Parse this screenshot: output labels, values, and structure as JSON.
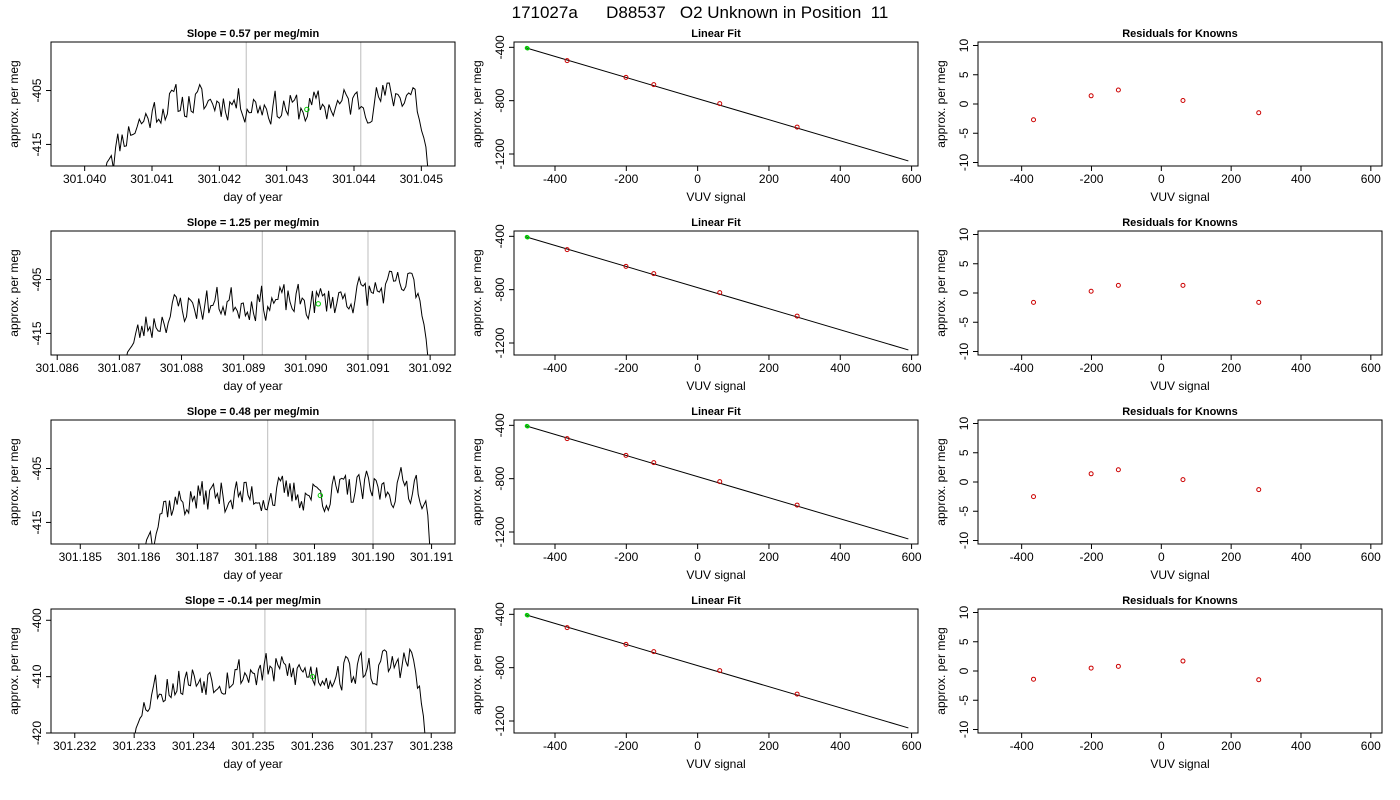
{
  "page": {
    "title": "171027a      D88537   O2 Unknown in Position  11"
  },
  "colors": {
    "line": "#000000",
    "point": "#cc0000",
    "highlight": "#00cc00",
    "vline": "#c8c8c8"
  },
  "chart_data": [
    {
      "type": "line",
      "title": "Slope =  0.57  per meg/min",
      "xlabel": "day of year",
      "ylabel": "approx. per meg",
      "xlim": [
        301.0395,
        301.0455
      ],
      "ylim": [
        -419,
        -396
      ],
      "xticks": [
        "301.040",
        "301.041",
        "301.042",
        "301.043",
        "301.044",
        "301.045"
      ],
      "yticks": [
        "-405",
        "-415"
      ],
      "vlines": [
        301.0424,
        301.0441
      ],
      "x_range": [
        301.0403,
        301.0451
      ],
      "rise_to": -409,
      "fall_to": -408,
      "seed": 11,
      "levels": [
        [
          301.0403,
          -419
        ],
        [
          301.0406,
          -413
        ],
        [
          301.0412,
          -407.5
        ],
        [
          301.0422,
          -407
        ],
        [
          301.0432,
          -408.5
        ],
        [
          301.0442,
          -407
        ],
        [
          301.0449,
          -405
        ],
        [
          301.0451,
          -419
        ]
      ],
      "green_point": [
        301.0433,
        -408.5
      ]
    },
    {
      "type": "line",
      "title": "Slope =  1.25  per meg/min",
      "xlabel": "day of year",
      "ylabel": "approx. per meg",
      "xlim": [
        301.0859,
        301.0924
      ],
      "ylim": [
        -419,
        -396
      ],
      "xticks": [
        "301.086",
        "301.087",
        "301.088",
        "301.089",
        "301.090",
        "301.091",
        "301.092"
      ],
      "yticks": [
        "-405",
        "-415"
      ],
      "vlines": [
        301.0893,
        301.091
      ],
      "x_range": [
        301.0871,
        301.092
      ],
      "rise_to": -411,
      "fall_to": -410,
      "seed": 23,
      "levels": [
        [
          301.0871,
          -419
        ],
        [
          301.0874,
          -414
        ],
        [
          301.088,
          -410
        ],
        [
          301.089,
          -409
        ],
        [
          301.09,
          -409.5
        ],
        [
          301.091,
          -407.5
        ],
        [
          301.0918,
          -406
        ],
        [
          301.092,
          -419
        ]
      ],
      "green_point": [
        301.0902,
        -409.5
      ]
    },
    {
      "type": "line",
      "title": "Slope =  0.48  per meg/min",
      "xlabel": "day of year",
      "ylabel": "approx. per meg",
      "xlim": [
        301.1845,
        301.1914
      ],
      "ylim": [
        -419,
        -396
      ],
      "xticks": [
        "301.185",
        "301.186",
        "301.187",
        "301.188",
        "301.189",
        "301.190",
        "301.191"
      ],
      "yticks": [
        "-405",
        "-415"
      ],
      "vlines": [
        301.1882,
        301.19
      ],
      "x_range": [
        301.1861,
        301.191
      ],
      "rise_to": -418,
      "fall_to": -419,
      "seed": 37,
      "levels": [
        [
          301.1861,
          -419
        ],
        [
          301.1864,
          -412
        ],
        [
          301.1872,
          -410
        ],
        [
          301.1882,
          -410
        ],
        [
          301.1892,
          -409.5
        ],
        [
          301.1902,
          -409
        ],
        [
          301.1908,
          -407.5
        ],
        [
          301.191,
          -419
        ]
      ],
      "green_point": [
        301.1891,
        -410
      ]
    },
    {
      "type": "line",
      "title": "Slope =  -0.14  per meg/min",
      "xlabel": "day of year",
      "ylabel": "approx. per meg",
      "xlim": [
        301.2316,
        301.2384
      ],
      "ylim": [
        -420,
        -398
      ],
      "xticks": [
        "301.232",
        "301.233",
        "301.234",
        "301.235",
        "301.236",
        "301.237",
        "301.238"
      ],
      "yticks": [
        "-420",
        "-410",
        "-400"
      ],
      "vlines": [
        301.2352,
        301.2369
      ],
      "x_range": [
        301.233,
        301.2379
      ],
      "rise_to": -420,
      "fall_to": -420,
      "seed": 53,
      "levels": [
        [
          301.233,
          -420
        ],
        [
          301.2333,
          -412
        ],
        [
          301.2342,
          -410
        ],
        [
          301.2352,
          -409
        ],
        [
          301.2362,
          -409.5
        ],
        [
          301.2372,
          -408.5
        ],
        [
          301.2377,
          -407
        ],
        [
          301.2379,
          -420
        ]
      ],
      "green_point": [
        301.236,
        -410
      ]
    },
    {
      "type": "scatter",
      "title": "Linear Fit",
      "xlabel": "VUV signal",
      "ylabel": "approx. per meg",
      "xlim": [
        -515,
        618
      ],
      "ylim": [
        -1290,
        -360
      ],
      "xticks": [
        "-400",
        "-200",
        "0",
        "200",
        "400",
        "600"
      ],
      "yticks": [
        "-400",
        "-800",
        "-1200"
      ],
      "points": [
        [
          -366,
          -500
        ],
        [
          -201,
          -625
        ],
        [
          -123,
          -680
        ],
        [
          62,
          -822
        ],
        [
          279,
          -998
        ]
      ],
      "green_points": [
        [
          -479,
          -405
        ],
        [
          -477,
          -408
        ]
      ],
      "fit_line": [
        [
          -480,
          -405
        ],
        [
          591,
          -1252
        ]
      ]
    },
    {
      "type": "scatter",
      "title": "Linear Fit",
      "xlabel": "VUV signal",
      "ylabel": "approx. per meg",
      "xlim": [
        -515,
        618
      ],
      "ylim": [
        -1290,
        -360
      ],
      "xticks": [
        "-400",
        "-200",
        "0",
        "200",
        "400",
        "600"
      ],
      "yticks": [
        "-400",
        "-800",
        "-1200"
      ],
      "points": [
        [
          -366,
          -500
        ],
        [
          -201,
          -625
        ],
        [
          -123,
          -680
        ],
        [
          62,
          -822
        ],
        [
          279,
          -998
        ]
      ],
      "green_points": [
        [
          -479,
          -405
        ],
        [
          -477,
          -408
        ]
      ],
      "fit_line": [
        [
          -480,
          -405
        ],
        [
          591,
          -1252
        ]
      ]
    },
    {
      "type": "scatter",
      "title": "Linear Fit",
      "xlabel": "VUV signal",
      "ylabel": "approx. per meg",
      "xlim": [
        -515,
        618
      ],
      "ylim": [
        -1290,
        -360
      ],
      "xticks": [
        "-400",
        "-200",
        "0",
        "200",
        "400",
        "600"
      ],
      "yticks": [
        "-400",
        "-800",
        "-1200"
      ],
      "points": [
        [
          -366,
          -500
        ],
        [
          -201,
          -625
        ],
        [
          -123,
          -680
        ],
        [
          62,
          -822
        ],
        [
          279,
          -998
        ]
      ],
      "green_points": [
        [
          -479,
          -405
        ],
        [
          -477,
          -408
        ]
      ],
      "fit_line": [
        [
          -480,
          -405
        ],
        [
          591,
          -1252
        ]
      ]
    },
    {
      "type": "scatter",
      "title": "Linear Fit",
      "xlabel": "VUV signal",
      "ylabel": "approx. per meg",
      "xlim": [
        -515,
        618
      ],
      "ylim": [
        -1290,
        -360
      ],
      "xticks": [
        "-400",
        "-200",
        "0",
        "200",
        "400",
        "600"
      ],
      "yticks": [
        "-400",
        "-800",
        "-1200"
      ],
      "points": [
        [
          -366,
          -500
        ],
        [
          -201,
          -625
        ],
        [
          -123,
          -680
        ],
        [
          62,
          -822
        ],
        [
          279,
          -998
        ]
      ],
      "green_points": [
        [
          -479,
          -405
        ],
        [
          -477,
          -408
        ]
      ],
      "fit_line": [
        [
          -480,
          -405
        ],
        [
          591,
          -1252
        ]
      ]
    },
    {
      "type": "scatter",
      "title": "Residuals for Knowns",
      "xlabel": "VUV signal",
      "ylabel": "approx. per meg",
      "xlim": [
        -525,
        632
      ],
      "ylim": [
        -10.6,
        10.6
      ],
      "xticks": [
        "-400",
        "-200",
        "0",
        "200",
        "400",
        "600"
      ],
      "yticks": [
        "-10",
        "-5",
        "0",
        "5",
        "10"
      ],
      "points": [
        [
          -366,
          -2.7
        ],
        [
          -201,
          1.4
        ],
        [
          -123,
          2.4
        ],
        [
          62,
          0.6
        ],
        [
          279,
          -1.5
        ]
      ]
    },
    {
      "type": "scatter",
      "title": "Residuals for Knowns",
      "xlabel": "VUV signal",
      "ylabel": "approx. per meg",
      "xlim": [
        -525,
        632
      ],
      "ylim": [
        -10.6,
        10.6
      ],
      "xticks": [
        "-400",
        "-200",
        "0",
        "200",
        "400",
        "600"
      ],
      "yticks": [
        "-10",
        "-5",
        "0",
        "5",
        "10"
      ],
      "points": [
        [
          -366,
          -1.6
        ],
        [
          -201,
          0.3
        ],
        [
          -123,
          1.3
        ],
        [
          62,
          1.3
        ],
        [
          279,
          -1.6
        ]
      ]
    },
    {
      "type": "scatter",
      "title": "Residuals for Knowns",
      "xlabel": "VUV signal",
      "ylabel": "approx. per meg",
      "xlim": [
        -525,
        632
      ],
      "ylim": [
        -10.6,
        10.6
      ],
      "xticks": [
        "-400",
        "-200",
        "0",
        "200",
        "400",
        "600"
      ],
      "yticks": [
        "-10",
        "-5",
        "0",
        "5",
        "10"
      ],
      "points": [
        [
          -366,
          -2.5
        ],
        [
          -201,
          1.4
        ],
        [
          -123,
          2.1
        ],
        [
          62,
          0.4
        ],
        [
          279,
          -1.3
        ]
      ]
    },
    {
      "type": "scatter",
      "title": "Residuals for Knowns",
      "xlabel": "VUV signal",
      "ylabel": "approx. per meg",
      "xlim": [
        -525,
        632
      ],
      "ylim": [
        -10.6,
        10.6
      ],
      "xticks": [
        "-400",
        "-200",
        "0",
        "200",
        "400",
        "600"
      ],
      "yticks": [
        "-10",
        "-5",
        "0",
        "5",
        "10"
      ],
      "points": [
        [
          -366,
          -1.4
        ],
        [
          -201,
          0.5
        ],
        [
          -123,
          0.8
        ],
        [
          62,
          1.7
        ],
        [
          279,
          -1.5
        ]
      ]
    }
  ]
}
